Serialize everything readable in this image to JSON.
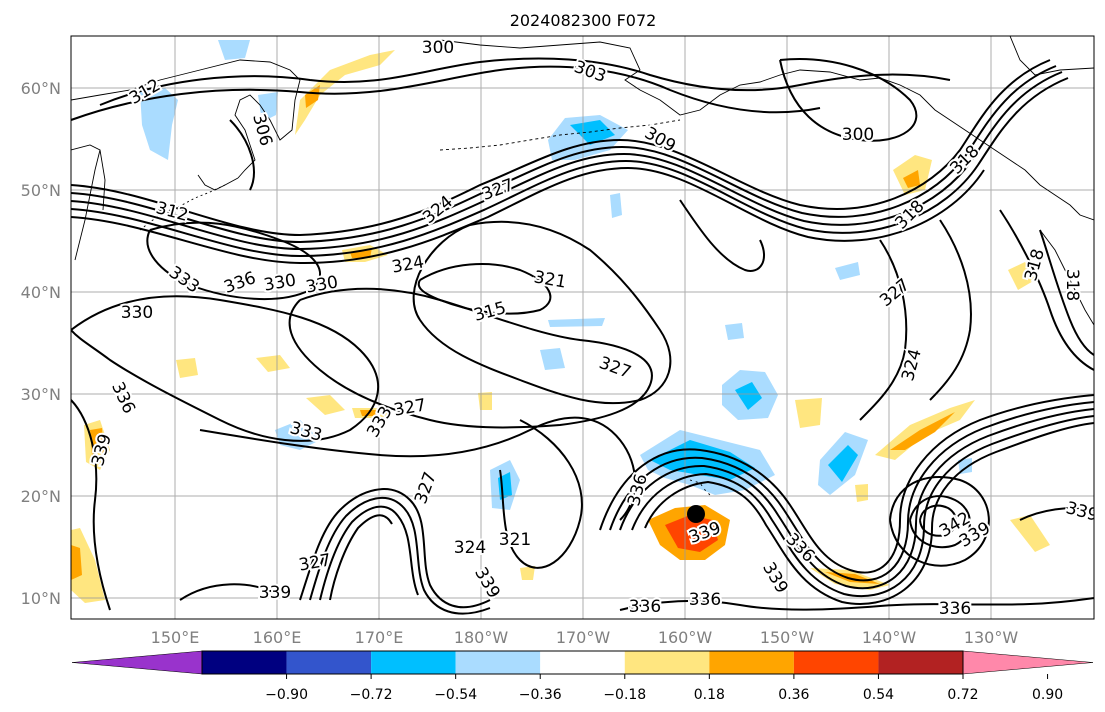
{
  "title": "2024082300 F072",
  "lat_labels": [
    "10°N",
    "20°N",
    "30°N",
    "40°N",
    "50°N",
    "60°N"
  ],
  "lat_values": [
    10,
    20,
    30,
    40,
    50,
    60
  ],
  "lon_labels": [
    "150°E",
    "160°E",
    "170°E",
    "180°W",
    "170°W",
    "160°W",
    "150°W",
    "140°W",
    "130°W"
  ],
  "colorbar": {
    "tick_labels": [
      "−0.90",
      "−0.72",
      "−0.54",
      "−0.36",
      "−0.18",
      "0.18",
      "0.36",
      "0.54",
      "0.72",
      "0.90"
    ],
    "colors": [
      "#9933cc",
      "#000080",
      "#3355cc",
      "#00bfff",
      "#aadcff",
      "#ffffff",
      "#ffe680",
      "#ffa500",
      "#ff4500",
      "#b22222",
      "#ff88aa"
    ]
  },
  "contour_labels": [
    {
      "text": "300"
    },
    {
      "text": "303"
    },
    {
      "text": "309"
    },
    {
      "text": "300"
    },
    {
      "text": "312"
    },
    {
      "text": "306"
    },
    {
      "text": "312"
    },
    {
      "text": "327"
    },
    {
      "text": "324"
    },
    {
      "text": "324"
    },
    {
      "text": "321"
    },
    {
      "text": "315"
    },
    {
      "text": "330"
    },
    {
      "text": "333"
    },
    {
      "text": "336"
    },
    {
      "text": "330"
    },
    {
      "text": "330"
    },
    {
      "text": "336"
    },
    {
      "text": "339"
    },
    {
      "text": "327"
    },
    {
      "text": "327"
    },
    {
      "text": "333"
    },
    {
      "text": "327"
    },
    {
      "text": "324"
    },
    {
      "text": "321"
    },
    {
      "text": "327"
    },
    {
      "text": "339"
    },
    {
      "text": "339"
    },
    {
      "text": "339"
    },
    {
      "text": "336"
    },
    {
      "text": "336"
    },
    {
      "text": "336"
    },
    {
      "text": "339"
    },
    {
      "text": "318"
    },
    {
      "text": "327"
    },
    {
      "text": "324"
    },
    {
      "text": "318"
    },
    {
      "text": "318"
    },
    {
      "text": "342"
    },
    {
      "text": "339"
    },
    {
      "text": "339"
    },
    {
      "text": "336"
    },
    {
      "text": "318"
    },
    {
      "text": "333"
    },
    {
      "text": "336"
    }
  ]
}
